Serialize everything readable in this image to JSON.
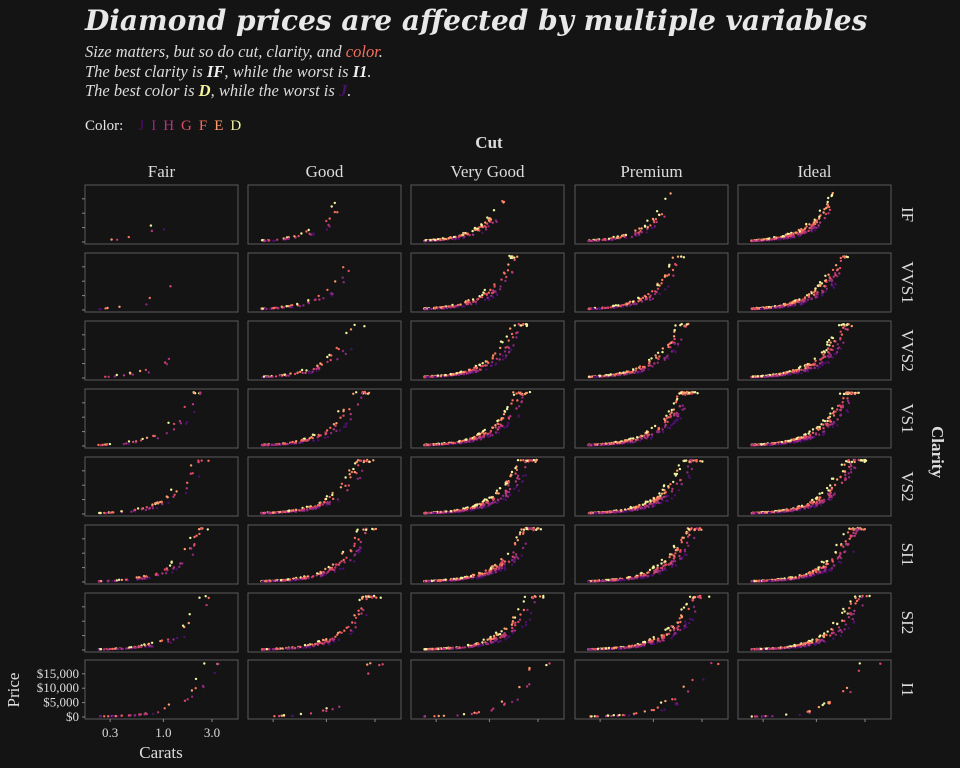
{
  "title": "Diamond prices are affected by multiple variables",
  "subtitle": {
    "line1_pre": "Size matters, but so do cut, clarity, and ",
    "line1_hl": "color",
    "line1_post": ".",
    "line2_pre": "The best clarity is ",
    "line2_b1": "IF",
    "line2_mid": ", while the worst is ",
    "line2_b2": "I1",
    "line2_post": ".",
    "line3_pre": "The best color is ",
    "line3_b1": "D",
    "line3_mid": ", while the worst is ",
    "line3_b2": "J",
    "line3_post": "."
  },
  "colors": {
    "background": "#141414",
    "panel_border": "#5a5a5a",
    "highlight": "#f66e5c"
  },
  "chart_data": {
    "type": "scatter",
    "facet_col_title": "Cut",
    "facet_row_title": "Clarity",
    "cuts": [
      "Fair",
      "Good",
      "Very Good",
      "Premium",
      "Ideal"
    ],
    "clarities": [
      "IF",
      "VVS1",
      "VVS2",
      "VS1",
      "VS2",
      "SI1",
      "SI2",
      "I1"
    ],
    "legend": {
      "title": "Color:",
      "placement": "top-left",
      "entries": [
        {
          "label": "J",
          "color": "#4b0f6e"
        },
        {
          "label": "I",
          "color": "#8c2981"
        },
        {
          "label": "H",
          "color": "#b5367a"
        },
        {
          "label": "G",
          "color": "#de4968"
        },
        {
          "label": "F",
          "color": "#f66e5c"
        },
        {
          "label": "E",
          "color": "#fe9f6d"
        },
        {
          "label": "D",
          "color": "#f4f4a0"
        }
      ]
    },
    "xlabel": "Carats",
    "ylabel": "Price",
    "x_scale": "log",
    "xlim": [
      0.17,
      5.4
    ],
    "x_ticks": [
      0.3,
      1.0,
      3.0
    ],
    "x_tick_labels": [
      "0.3",
      "1.0",
      "3.0"
    ],
    "ylim": [
      -700,
      19800
    ],
    "y_ticks": [
      0,
      5000,
      10000,
      15000
    ],
    "y_tick_labels": [
      "$0",
      "$5,000",
      "$10,000",
      "$15,000"
    ],
    "grid": false,
    "trend": "price rises roughly as carats^1.8; better clarity and color shift curves upward"
  }
}
